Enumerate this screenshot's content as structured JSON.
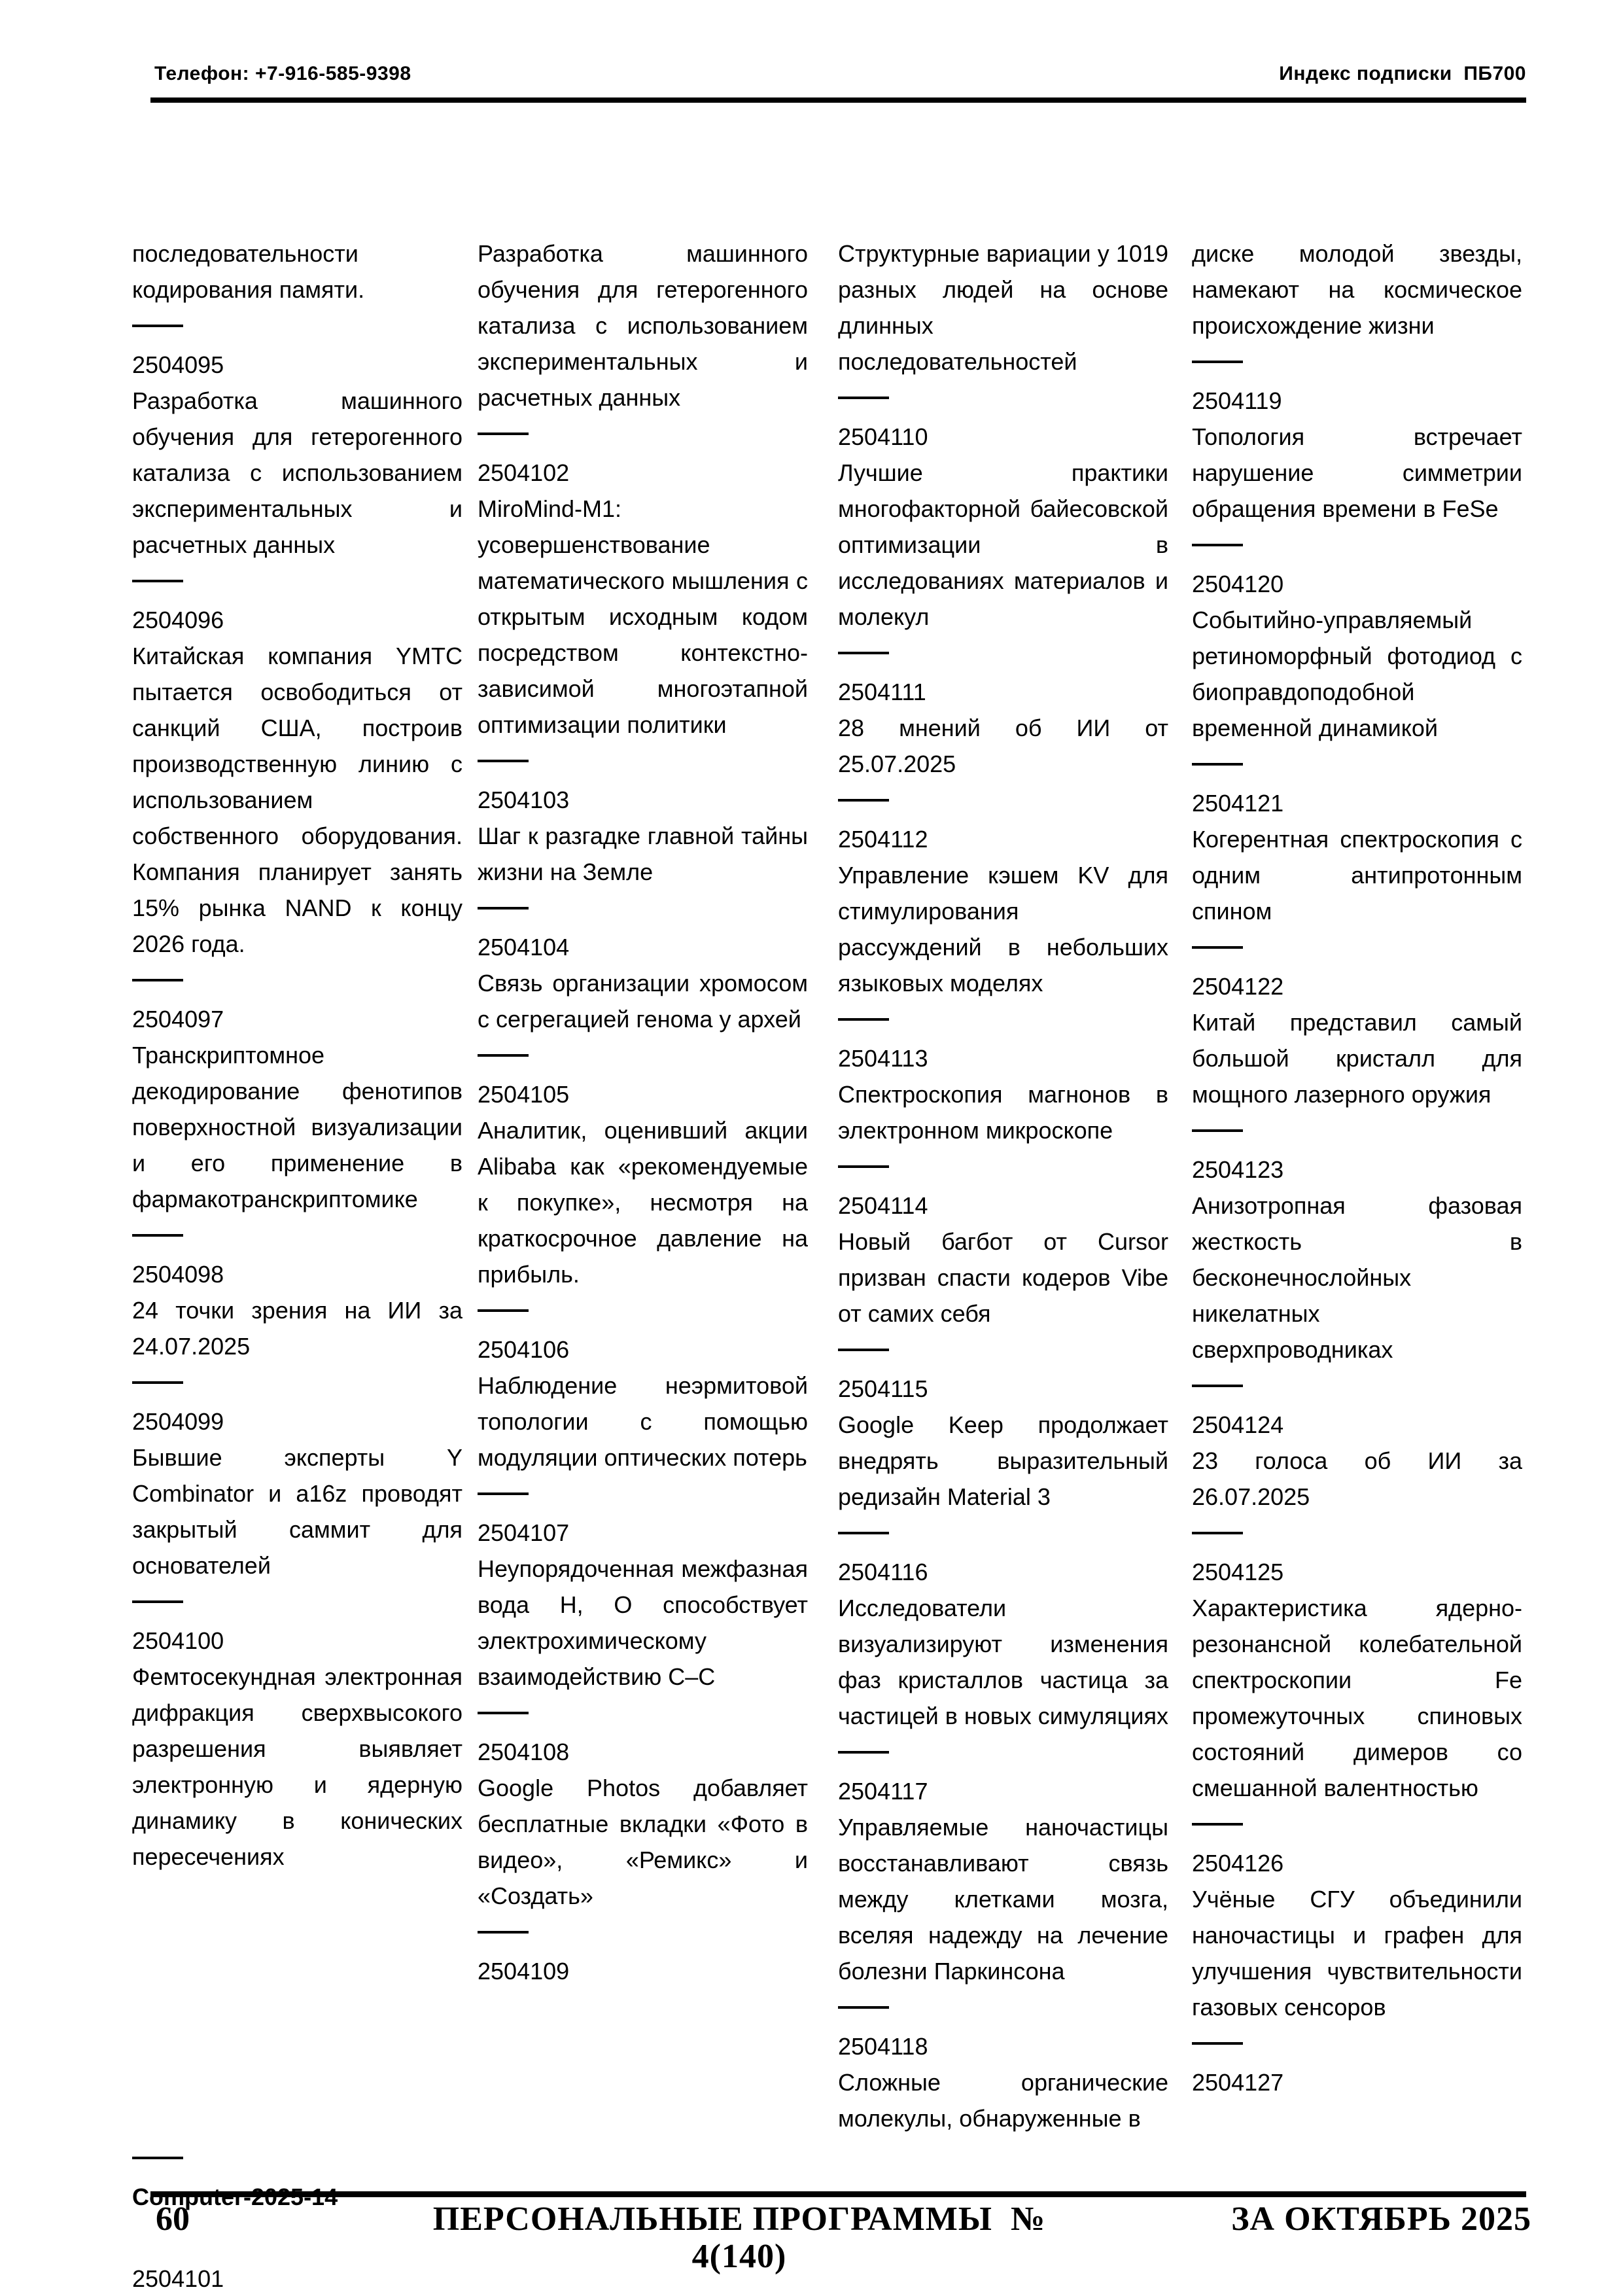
{
  "colors": {
    "page_background": "#ffffff",
    "text": "#000000",
    "rules": "#000000"
  },
  "header": {
    "phone": "Телефон: +7-916-585-9398",
    "subscription_index": "Индекс подписки  ПБ700"
  },
  "footer": {
    "page_number": "60",
    "journal_title": "ПЕРСОНАЛЬНЫЕ ПРОГРАММЫ  № 4(140)",
    "issue_period": "ЗА ОКТЯБРЬ 2025"
  },
  "columns": [
    [
      {
        "t": "para",
        "v": "последовательности кодирования памяти."
      },
      {
        "t": "sep"
      },
      {
        "t": "num",
        "v": "2504095"
      },
      {
        "t": "para",
        "v": "Разработка машинного обучения для гетерогенного катализа с использованием экспериментальных и расчетных данных"
      },
      {
        "t": "sep"
      },
      {
        "t": "num",
        "v": "2504096"
      },
      {
        "t": "para",
        "v": "Китайская компания YMTC пытается освободиться от санкций США, построив производственную линию с использованием собственного оборудования. Компания планирует занять 15% рынка NAND к концу 2026 года."
      },
      {
        "t": "sep"
      },
      {
        "t": "num",
        "v": "2504097"
      },
      {
        "t": "para",
        "v": "Транскриптомное декодирование фенотипов поверхностной визуализации и его применение в фармакотранскриптомике"
      },
      {
        "t": "sep"
      },
      {
        "t": "num",
        "v": "2504098"
      },
      {
        "t": "para",
        "v": "24 точки зрения на ИИ за 24.07.2025"
      },
      {
        "t": "sep"
      },
      {
        "t": "num",
        "v": "2504099"
      },
      {
        "t": "para",
        "v": "Бывшие эксперты Y Combinator и a16z проводят закрытый саммит для основателей"
      },
      {
        "t": "sep"
      },
      {
        "t": "num",
        "v": "2504100"
      },
      {
        "t": "para",
        "v": "Фемтосекундная электронная дифракция сверхвысокого разрешения выявляет электронную и ядерную динамику в конических пересечениях"
      },
      {
        "t": "push"
      },
      {
        "t": "sep"
      },
      {
        "t": "bold",
        "v": "Computer-2025-14"
      },
      {
        "t": "gap",
        "px": 70
      },
      {
        "t": "num",
        "v": "2504101"
      }
    ],
    [
      {
        "t": "para",
        "v": "Разработка машинного обучения для гетерогенного катализа с использованием экспериментальных и расчетных данных"
      },
      {
        "t": "sep"
      },
      {
        "t": "num",
        "v": "2504102"
      },
      {
        "t": "para",
        "v": "MiroMind-M1: усовершенствование математического мышления с открытым исходным кодом посредством контекстно-зависимой многоэтапной оптимизации политики"
      },
      {
        "t": "sep"
      },
      {
        "t": "num",
        "v": "2504103"
      },
      {
        "t": "para",
        "v": "Шаг к разгадке главной тайны жизни на Земле"
      },
      {
        "t": "sep"
      },
      {
        "t": "num",
        "v": "2504104"
      },
      {
        "t": "para",
        "v": "Связь организации хромосом с сегрегацией генома у архей"
      },
      {
        "t": "sep"
      },
      {
        "t": "num",
        "v": "2504105"
      },
      {
        "t": "para",
        "v": "Аналитик, оценивший акции Alibaba как «рекомендуемые к покупке», несмотря на краткосрочное давление на прибыль."
      },
      {
        "t": "sep"
      },
      {
        "t": "num",
        "v": "2504106"
      },
      {
        "t": "para",
        "v": "Наблюдение неэрмитовой топологии с помощью модуляции оптических потерь"
      },
      {
        "t": "sep"
      },
      {
        "t": "num",
        "v": "2504107"
      },
      {
        "t": "para",
        "v": "Неупорядоченная межфазная вода H, O способствует электрохимическому взаимодействию C–C"
      },
      {
        "t": "sep"
      },
      {
        "t": "num",
        "v": "2504108"
      },
      {
        "t": "para",
        "v": "Google Photos добавляет бесплатные вкладки «Фото в видео», «Ремикс» и «Создать»"
      },
      {
        "t": "sep"
      },
      {
        "t": "num",
        "v": "2504109"
      }
    ],
    [
      {
        "t": "para",
        "v": "Структурные вариации у 1019 разных людей на основе длинных последовательностей"
      },
      {
        "t": "sep"
      },
      {
        "t": "num",
        "v": "2504110"
      },
      {
        "t": "para",
        "v": "Лучшие практики многофакторной байесовской оптимизации в исследованиях материалов и молекул"
      },
      {
        "t": "sep"
      },
      {
        "t": "num",
        "v": "2504111"
      },
      {
        "t": "para",
        "v": "28 мнений об ИИ от 25.07.2025"
      },
      {
        "t": "sep"
      },
      {
        "t": "num",
        "v": "2504112"
      },
      {
        "t": "para",
        "v": "Управление кэшем KV для стимулирования рассуждений в небольших языковых моделях"
      },
      {
        "t": "sep"
      },
      {
        "t": "num",
        "v": "2504113"
      },
      {
        "t": "para",
        "v": "Спектроскопия магнонов в электронном микроскопе"
      },
      {
        "t": "sep"
      },
      {
        "t": "num",
        "v": "2504114"
      },
      {
        "t": "para",
        "v": "Новый багбот от Cursor призван спасти кодеров Vibe от самих себя"
      },
      {
        "t": "sep"
      },
      {
        "t": "num",
        "v": "2504115"
      },
      {
        "t": "para",
        "v": "Google Keep продолжает внедрять выразительный редизайн Material 3"
      },
      {
        "t": "sep"
      },
      {
        "t": "num",
        "v": "2504116"
      },
      {
        "t": "para",
        "v": "Исследователи визуализируют изменения фаз кристаллов частица за частицей в новых симуляциях"
      },
      {
        "t": "sep"
      },
      {
        "t": "num",
        "v": "2504117"
      },
      {
        "t": "para",
        "v": "Управляемые наночастицы восстанавливают связь между клетками мозга, вселяя надежду на лечение болезни Паркинсона"
      },
      {
        "t": "sep"
      },
      {
        "t": "num",
        "v": "2504118"
      },
      {
        "t": "para",
        "v": "Сложные органические молекулы, обнаруженные в"
      }
    ],
    [
      {
        "t": "para",
        "v": "диске молодой звезды, намекают на космическое происхождение жизни"
      },
      {
        "t": "sep"
      },
      {
        "t": "num",
        "v": "2504119"
      },
      {
        "t": "para",
        "v": "Топология встречает нарушение симметрии обращения времени в FeSe"
      },
      {
        "t": "sep"
      },
      {
        "t": "num",
        "v": "2504120"
      },
      {
        "t": "para",
        "v": "Событийно-управляемый ретиноморфный фотодиод с биоправдоподобной временной динамикой"
      },
      {
        "t": "sep"
      },
      {
        "t": "num",
        "v": "2504121"
      },
      {
        "t": "para",
        "v": "Когерентная спектроскопия с одним антипротонным спином"
      },
      {
        "t": "sep"
      },
      {
        "t": "num",
        "v": "2504122"
      },
      {
        "t": "para",
        "v": "Китай представил самый большой кристалл для мощного лазерного оружия"
      },
      {
        "t": "sep"
      },
      {
        "t": "num",
        "v": "2504123"
      },
      {
        "t": "para",
        "v": "Анизотропная фазовая жесткость в бесконечнослойных никелатных сверхпроводниках"
      },
      {
        "t": "sep"
      },
      {
        "t": "num",
        "v": "2504124"
      },
      {
        "t": "para",
        "v": "23 голоса об ИИ за 26.07.2025"
      },
      {
        "t": "sep"
      },
      {
        "t": "num",
        "v": "2504125"
      },
      {
        "t": "para",
        "v": "Характеристика ядерно-резонансной колебательной спектроскопии Fe промежуточных спиновых состояний димеров со смешанной валентностью"
      },
      {
        "t": "sep"
      },
      {
        "t": "num",
        "v": "2504126"
      },
      {
        "t": "para",
        "v": "Учёные СГУ объединили наночастицы и графен для улучшения чувствительности газовых сенсоров"
      },
      {
        "t": "sep"
      },
      {
        "t": "num",
        "v": "2504127"
      }
    ]
  ]
}
